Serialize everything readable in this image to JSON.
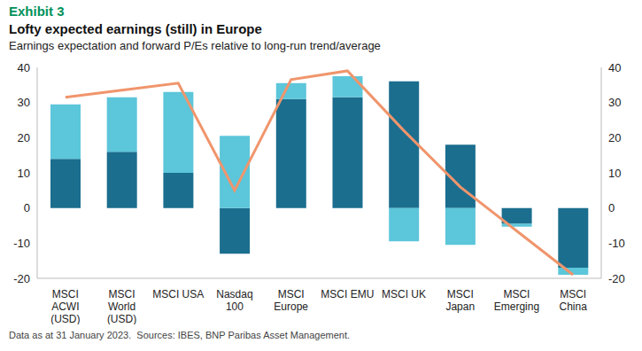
{
  "chart_data": {
    "type": "bar",
    "label": "Exhibit 3",
    "title": "Lofty expected earnings (still) in Europe",
    "subtitle": "Earnings expectation and forward P/Es relative to long-run trend/average",
    "source": "Data as at 31 January 2023.  Sources: IBES, BNP Paribas Asset Management.",
    "categories": [
      "MSCI ACWI (USD)",
      "MSCI World (USD)",
      "MSCI USA",
      "Nasdaq 100",
      "MSCI Europe",
      "MSCI EMU",
      "MSCI UK",
      "MSCI Japan",
      "MSCI Emerging",
      "MSCI China"
    ],
    "stacked": true,
    "grid": false,
    "ylim": [
      -20,
      40
    ],
    "yticks": [
      -20,
      -10,
      0,
      10,
      20,
      30,
      40
    ],
    "y2lim": [
      -20,
      40
    ],
    "y2ticks": [
      -20,
      -10,
      0,
      10,
      20,
      30,
      40
    ],
    "series": [
      {
        "color": "#1b6e8e",
        "values": [
          14,
          16,
          10,
          -13,
          31,
          31.5,
          36,
          18,
          -4.5,
          -17
        ]
      },
      {
        "color": "#5cc6da",
        "values": [
          15.5,
          15.5,
          23,
          20.5,
          4.5,
          6,
          -9.5,
          -10.5,
          -0.8,
          -2
        ]
      },
      {
        "type": "line",
        "axis": "y2",
        "color": "#f0956c",
        "values": [
          31.5,
          33.5,
          35.5,
          5,
          36.5,
          39,
          22,
          6,
          -6.5,
          -19
        ]
      }
    ]
  }
}
